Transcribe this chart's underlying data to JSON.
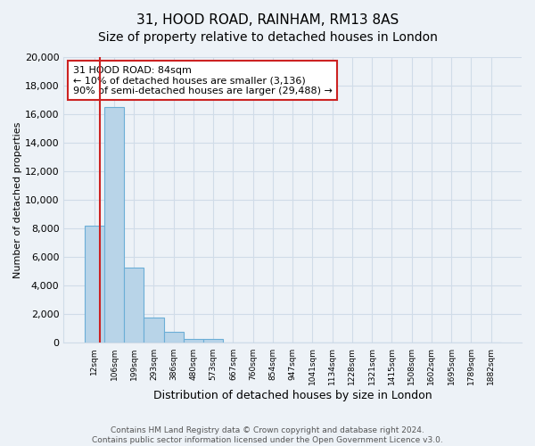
{
  "title": "31, HOOD ROAD, RAINHAM, RM13 8AS",
  "subtitle": "Size of property relative to detached houses in London",
  "xlabel": "Distribution of detached houses by size in London",
  "ylabel": "Number of detached properties",
  "bar_labels": [
    "12sqm",
    "106sqm",
    "199sqm",
    "293sqm",
    "386sqm",
    "480sqm",
    "573sqm",
    "667sqm",
    "760sqm",
    "854sqm",
    "947sqm",
    "1041sqm",
    "1134sqm",
    "1228sqm",
    "1321sqm",
    "1415sqm",
    "1508sqm",
    "1602sqm",
    "1695sqm",
    "1789sqm",
    "1882sqm"
  ],
  "bar_values": [
    8200,
    16500,
    5300,
    1750,
    800,
    280,
    250,
    0,
    0,
    0,
    0,
    0,
    0,
    0,
    0,
    0,
    0,
    0,
    0,
    0,
    0
  ],
  "bar_color": "#b8d4e8",
  "bar_edge_color": "#6baed6",
  "highlight_color": "#cc2222",
  "annotation_title": "31 HOOD ROAD: 84sqm",
  "annotation_line1": "← 10% of detached houses are smaller (3,136)",
  "annotation_line2": "90% of semi-detached houses are larger (29,488) →",
  "annotation_box_color": "#ffffff",
  "annotation_box_edge": "#cc2222",
  "red_line_x": 0.78,
  "ylim": [
    0,
    20000
  ],
  "yticks": [
    0,
    2000,
    4000,
    6000,
    8000,
    10000,
    12000,
    14000,
    16000,
    18000,
    20000
  ],
  "footer_line1": "Contains HM Land Registry data © Crown copyright and database right 2024.",
  "footer_line2": "Contains public sector information licensed under the Open Government Licence v3.0.",
  "bg_color": "#edf2f7",
  "grid_color": "#d0dce8",
  "title_fontsize": 11,
  "subtitle_fontsize": 10
}
